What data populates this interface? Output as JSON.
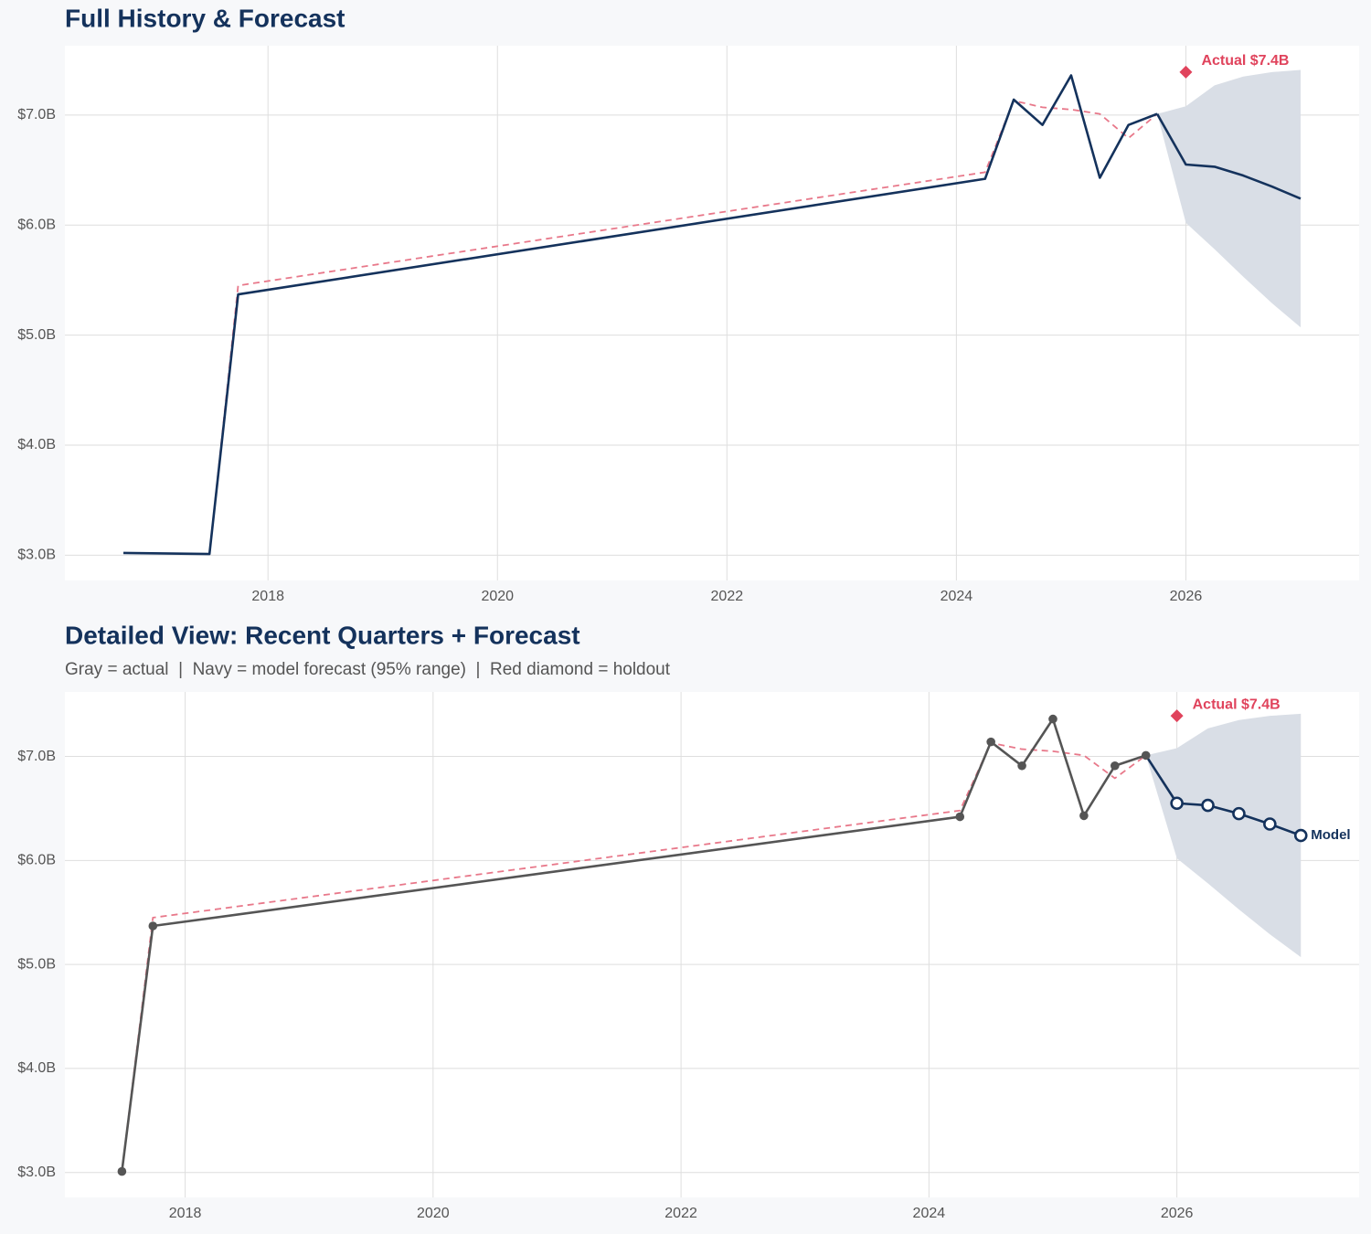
{
  "chart_data": [
    {
      "type": "line",
      "title": "Full History & Forecast",
      "xlim": [
        2016.23,
        2027.51
      ],
      "ylim": [
        2.77,
        7.63
      ],
      "xticks": [
        2018,
        2020,
        2022,
        2024,
        2026
      ],
      "yticks": [
        {
          "value": 3,
          "label": "$3.0B"
        },
        {
          "value": 4,
          "label": "$4.0B"
        },
        {
          "value": 5,
          "label": "$5.0B"
        },
        {
          "value": 6,
          "label": "$6.0B"
        },
        {
          "value": 7,
          "label": "$7.0B"
        }
      ],
      "grid": true,
      "band": {
        "color": "#d9dee6",
        "x": [
          2025.75,
          2026,
          2026.25,
          2026.5,
          2026.75,
          2027
        ],
        "lower": [
          7.01,
          6.02,
          5.78,
          5.53,
          5.29,
          5.07
        ],
        "upper": [
          7.01,
          7.08,
          7.27,
          7.35,
          7.39,
          7.41
        ]
      },
      "series": [
        {
          "color": "#e8788a",
          "dash": true,
          "x": [
            2017.49,
            2017.74,
            2024.25,
            2024.5,
            2024.75,
            2025,
            2025.25,
            2025.5,
            2025.75
          ],
          "values": [
            3.01,
            5.45,
            6.48,
            7.13,
            7.07,
            7.05,
            7.01,
            6.79,
            7.01
          ]
        },
        {
          "color": "#14325c",
          "x": [
            2016.74,
            2017.49,
            2017.74,
            2024.25,
            2024.5,
            2024.75,
            2025,
            2025.25,
            2025.5,
            2025.75
          ],
          "values": [
            3.02,
            3.01,
            5.37,
            6.42,
            7.14,
            6.91,
            7.36,
            6.43,
            6.91,
            7.01
          ]
        },
        {
          "color": "#14325c",
          "x": [
            2025.75,
            2026,
            2026.25,
            2026.5,
            2026.75,
            2027
          ],
          "values": [
            7.01,
            6.55,
            6.53,
            6.45,
            6.35,
            6.24
          ]
        }
      ],
      "annotations": [
        {
          "x": 2026,
          "y": 7.39,
          "label": "Actual $7.4B",
          "color": "#e0435c"
        }
      ]
    },
    {
      "type": "line",
      "title": "Detailed View: Recent Quarters + Forecast",
      "subtitle": "Gray = actual  |  Navy = model forecast (95% range)  |  Red diamond = holdout",
      "xlim": [
        2017.03,
        2027.47
      ],
      "ylim": [
        2.76,
        7.62
      ],
      "xticks": [
        2018,
        2020,
        2022,
        2024,
        2026
      ],
      "yticks": [
        {
          "value": 3,
          "label": "$3.0B"
        },
        {
          "value": 4,
          "label": "$4.0B"
        },
        {
          "value": 5,
          "label": "$5.0B"
        },
        {
          "value": 6,
          "label": "$6.0B"
        },
        {
          "value": 7,
          "label": "$7.0B"
        }
      ],
      "grid": true,
      "band": {
        "color": "#d9dee6",
        "x": [
          2025.75,
          2026,
          2026.25,
          2026.5,
          2026.75,
          2027
        ],
        "lower": [
          7.01,
          6.02,
          5.78,
          5.53,
          5.29,
          5.07
        ],
        "upper": [
          7.01,
          7.08,
          7.27,
          7.35,
          7.39,
          7.41
        ]
      },
      "series": [
        {
          "color": "#e8788a",
          "dash": true,
          "x": [
            2017.49,
            2017.74,
            2024.25,
            2024.5,
            2024.75,
            2025,
            2025.25,
            2025.5,
            2025.75
          ],
          "values": [
            3.01,
            5.45,
            6.48,
            7.13,
            7.07,
            7.05,
            7.01,
            6.79,
            7.01
          ]
        },
        {
          "color": "#14325c",
          "marker": "hollow",
          "markers": [
            false,
            true,
            true,
            true,
            true,
            true
          ],
          "end_label": "Model",
          "x": [
            2025.75,
            2026,
            2026.25,
            2026.5,
            2026.75,
            2027
          ],
          "values": [
            7.01,
            6.55,
            6.53,
            6.45,
            6.35,
            6.24
          ]
        },
        {
          "color": "#555555",
          "markers": true,
          "x": [
            2017.49,
            2017.74,
            2024.25,
            2024.5,
            2024.75,
            2025,
            2025.25,
            2025.5,
            2025.75
          ],
          "values": [
            3.01,
            5.37,
            6.42,
            7.14,
            6.91,
            7.36,
            6.43,
            6.91,
            7.01
          ]
        }
      ],
      "annotations": [
        {
          "x": 2026,
          "y": 7.39,
          "label": "Actual $7.4B",
          "color": "#e0435c"
        }
      ]
    }
  ]
}
